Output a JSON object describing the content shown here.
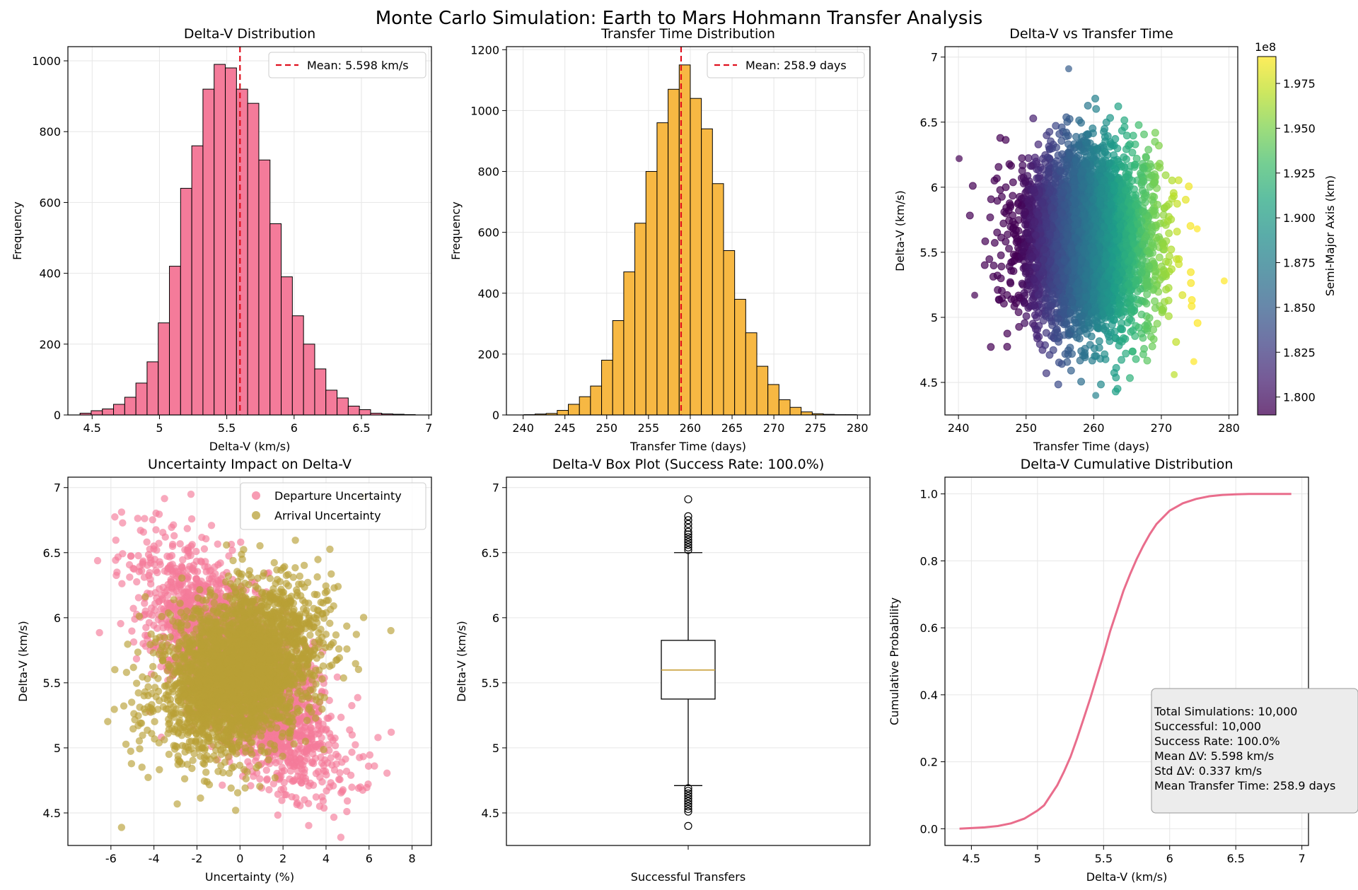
{
  "figure": {
    "suptitle": "Monte Carlo Simulation: Earth to Mars Hohmann Transfer Analysis"
  },
  "chart_data": [
    {
      "id": "dv_hist",
      "type": "bar",
      "title": "Delta-V Distribution",
      "xlabel": "Delta-V (km/s)",
      "ylabel": "Frequency",
      "xlim": [
        4.32,
        7.02
      ],
      "ylim": [
        0,
        1040
      ],
      "xticks": [
        4.5,
        5.0,
        5.5,
        6.0,
        6.5,
        7.0
      ],
      "yticks": [
        0,
        200,
        400,
        600,
        800,
        1000
      ],
      "bin_edges": [
        4.41,
        4.493,
        4.576,
        4.659,
        4.742,
        4.825,
        4.908,
        4.991,
        5.074,
        5.157,
        5.24,
        5.323,
        5.406,
        5.489,
        5.572,
        5.655,
        5.738,
        5.821,
        5.904,
        5.987,
        6.07,
        6.153,
        6.236,
        6.319,
        6.402,
        6.485,
        6.568,
        6.651,
        6.734,
        6.817,
        6.9
      ],
      "values": [
        5,
        12,
        17,
        30,
        50,
        90,
        150,
        260,
        420,
        640,
        760,
        920,
        990,
        980,
        920,
        880,
        720,
        540,
        390,
        280,
        200,
        130,
        70,
        48,
        25,
        15,
        5,
        3,
        2,
        1
      ],
      "color": "#f47b9a",
      "mean_line": {
        "x": 5.598,
        "label": "Mean: 5.598 km/s"
      }
    },
    {
      "id": "tt_hist",
      "type": "bar",
      "title": "Transfer Time Distribution",
      "xlabel": "Transfer Time (days)",
      "ylabel": "Frequency",
      "xlim": [
        238.0,
        281.5
      ],
      "ylim": [
        0,
        1210
      ],
      "xticks": [
        240,
        245,
        250,
        255,
        260,
        265,
        270,
        275,
        280
      ],
      "yticks": [
        0,
        200,
        400,
        600,
        800,
        1000,
        1200
      ],
      "bin_edges": [
        240.1,
        241.427,
        242.753,
        244.08,
        245.407,
        246.733,
        248.06,
        249.387,
        250.713,
        252.04,
        253.367,
        254.693,
        256.02,
        257.347,
        258.673,
        260.0,
        261.327,
        262.653,
        263.98,
        265.307,
        266.633,
        267.96,
        269.287,
        270.613,
        271.94,
        273.267,
        274.593,
        275.92,
        277.247,
        278.573,
        279.9
      ],
      "values": [
        1,
        3,
        5,
        15,
        35,
        60,
        95,
        180,
        310,
        470,
        630,
        800,
        960,
        1070,
        1150,
        1040,
        940,
        760,
        540,
        380,
        270,
        160,
        100,
        50,
        25,
        10,
        4,
        2,
        1,
        1
      ],
      "color": "#f7b843",
      "mean_line": {
        "x": 258.9,
        "label": "Mean: 258.9 days"
      }
    },
    {
      "id": "scatter_tt",
      "type": "scatter",
      "title": "Delta-V vs Transfer Time",
      "xlabel": "Transfer Time (days)",
      "ylabel": "Delta-V (km/s)",
      "xlim": [
        238.0,
        281.3
      ],
      "ylim": [
        4.25,
        7.08
      ],
      "xticks": [
        240,
        250,
        260,
        270,
        280
      ],
      "yticks": [
        4.5,
        5.0,
        5.5,
        6.0,
        6.5,
        7.0
      ],
      "point_cloud": {
        "x_mean": 258.9,
        "x_std": 5.0,
        "y_mean": 5.598,
        "y_std": 0.337,
        "n_drawn": 4500
      },
      "outliers": [
        [
          240.1,
          6.22
        ],
        [
          279.3,
          5.28
        ],
        [
          242.4,
          5.17
        ],
        [
          256.3,
          6.91
        ],
        [
          260.3,
          4.4
        ],
        [
          274.8,
          4.66
        ],
        [
          271.9,
          4.56
        ],
        [
          275.3,
          5.68
        ]
      ],
      "colorbar": {
        "label": "Semi-Major Axis (km)",
        "exponent_label": "1e8",
        "range": [
          1.79,
          1.99
        ],
        "ticks": [
          1.8,
          1.825,
          1.85,
          1.875,
          1.9,
          1.925,
          1.95,
          1.975
        ],
        "tick_labels": [
          "1.800",
          "1.825",
          "1.850",
          "1.875",
          "1.900",
          "1.925",
          "1.950",
          "1.975"
        ],
        "colormap": "viridis"
      }
    },
    {
      "id": "uncertainty",
      "type": "scatter",
      "title": "Uncertainty Impact on Delta-V",
      "xlabel": "Uncertainty (%)",
      "ylabel": "Delta-V (km/s)",
      "xlim": [
        -8.0,
        8.9
      ],
      "ylim": [
        4.25,
        7.08
      ],
      "xticks": [
        -6,
        -4,
        -2,
        0,
        2,
        4,
        6,
        8
      ],
      "yticks": [
        4.5,
        5.0,
        5.5,
        6.0,
        6.5,
        7.0
      ],
      "series": [
        {
          "name": "Departure Uncertainty",
          "color": "#f47b9a",
          "x_mean": 0.0,
          "x_std": 2.0,
          "y_mean": 5.598,
          "y_std": 0.337,
          "slope": -0.14
        },
        {
          "name": "Arrival Uncertainty",
          "color": "#b8a036",
          "x_mean": 0.0,
          "x_std": 1.8,
          "y_mean": 5.598,
          "y_std": 0.337,
          "slope": 0.06
        }
      ],
      "legend_position": "upper-right"
    },
    {
      "id": "boxplot",
      "type": "box",
      "title": "Delta-V Box Plot (Success Rate: 100.0%)",
      "xlabel": "Successful Transfers",
      "ylabel": "Delta-V (km/s)",
      "ylim": [
        4.25,
        7.08
      ],
      "yticks": [
        4.5,
        5.0,
        5.5,
        6.0,
        6.5,
        7.0
      ],
      "box": {
        "q1": 5.375,
        "median": 5.598,
        "q3": 5.826,
        "whisker_low": 4.71,
        "whisker_high": 6.5
      },
      "fliers_high": [
        6.52,
        6.54,
        6.56,
        6.58,
        6.6,
        6.62,
        6.64,
        6.66,
        6.69,
        6.72,
        6.75,
        6.78,
        6.91
      ],
      "fliers_low": [
        4.69,
        4.67,
        4.65,
        4.63,
        4.61,
        4.59,
        4.57,
        4.55,
        4.53,
        4.51,
        4.4
      ],
      "median_color": "#c9a13a"
    },
    {
      "id": "cdf",
      "type": "line",
      "title": "Delta-V Cumulative Distribution",
      "xlabel": "Delta-V (km/s)",
      "ylabel": "Cumulative Probability",
      "xlim": [
        4.3,
        7.05
      ],
      "ylim": [
        -0.05,
        1.05
      ],
      "xticks": [
        4.5,
        5.0,
        5.5,
        6.0,
        6.5,
        7.0
      ],
      "yticks": [
        0.0,
        0.2,
        0.4,
        0.6,
        0.8,
        1.0
      ],
      "x": [
        4.41,
        4.5,
        4.6,
        4.7,
        4.8,
        4.9,
        5.0,
        5.05,
        5.1,
        5.15,
        5.2,
        5.25,
        5.3,
        5.35,
        5.4,
        5.45,
        5.5,
        5.55,
        5.6,
        5.65,
        5.7,
        5.75,
        5.8,
        5.85,
        5.9,
        5.95,
        6.0,
        6.1,
        6.2,
        6.3,
        6.4,
        6.5,
        6.6,
        6.7,
        6.92
      ],
      "y": [
        0.0,
        0.002,
        0.004,
        0.008,
        0.016,
        0.03,
        0.054,
        0.07,
        0.1,
        0.13,
        0.17,
        0.215,
        0.27,
        0.33,
        0.39,
        0.455,
        0.52,
        0.59,
        0.65,
        0.71,
        0.76,
        0.805,
        0.845,
        0.88,
        0.91,
        0.93,
        0.95,
        0.972,
        0.985,
        0.993,
        0.997,
        0.999,
        1.0,
        1.0,
        1.0
      ],
      "color": "#e96d8c",
      "stats_box": [
        "Total Simulations: 10,000",
        "Successful: 10,000",
        "Success Rate: 100.0%",
        "Mean ΔV: 5.598 km/s",
        "Std ΔV: 0.337 km/s",
        "Mean Transfer Time: 258.9 days"
      ]
    }
  ]
}
